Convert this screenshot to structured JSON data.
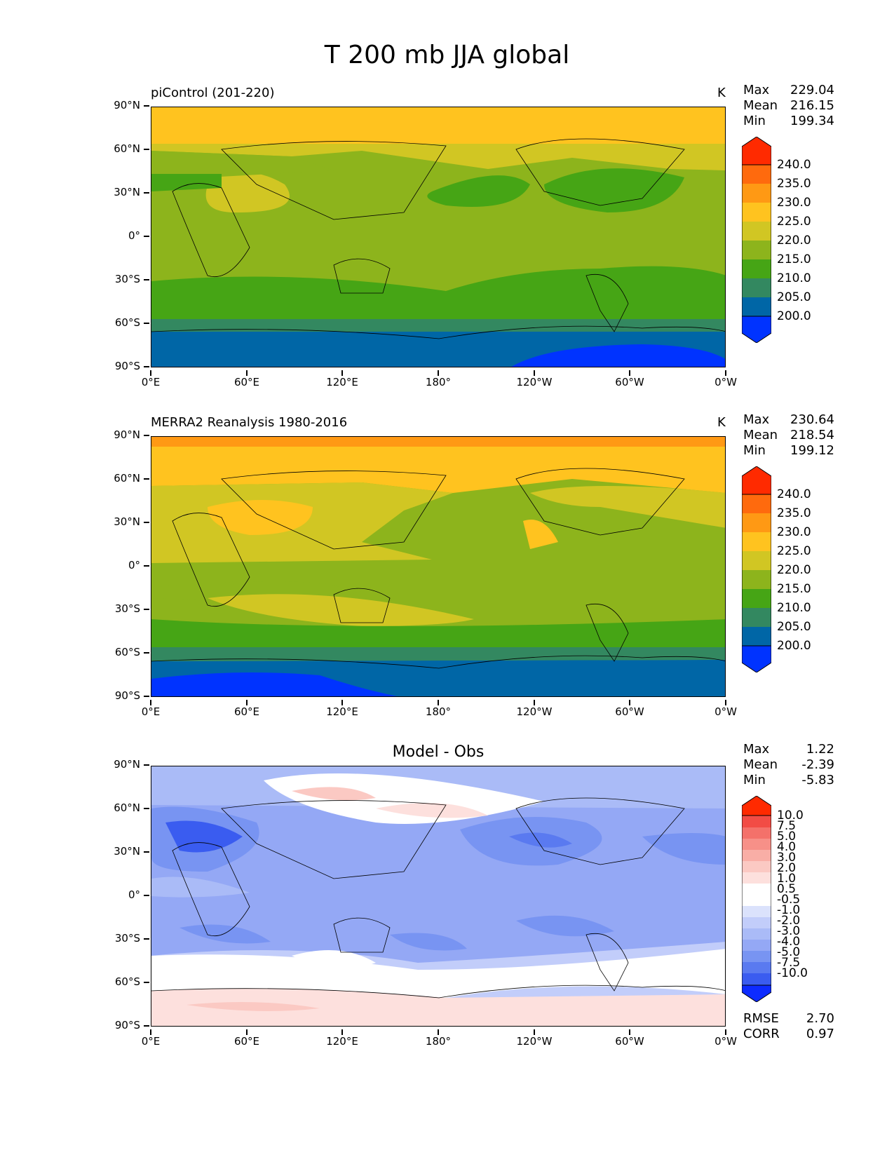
{
  "figure": {
    "title": "T 200 mb JJA global"
  },
  "axes": {
    "yticks": [
      "90°N",
      "60°N",
      "30°N",
      "0°",
      "30°S",
      "60°S",
      "90°S"
    ],
    "xticks": [
      "0°E",
      "60°E",
      "120°E",
      "180°",
      "120°W",
      "60°W",
      "0°W"
    ]
  },
  "colors": {
    "abs_levels": [
      "#0033ff",
      "#0066a6",
      "#338860",
      "#46a515",
      "#8db41c",
      "#d1c623",
      "#ffc31f",
      "#ff9914",
      "#ff6a0d",
      "#ff2a00"
    ],
    "diff_levels": [
      "#0d2bff",
      "#3a5cf0",
      "#5a7af0",
      "#7894f2",
      "#94a8f5",
      "#aabbf7",
      "#c2cdfa",
      "#dbe2fc",
      "#ffffff",
      "#fde0dd",
      "#fbc9c3",
      "#f9aea6",
      "#f79088",
      "#f4716a",
      "#f24c45",
      "#ff2a00"
    ]
  },
  "panels": [
    {
      "title": "piControl (201-220)",
      "units": "K",
      "stats": [
        {
          "label": "Max",
          "value": "229.04"
        },
        {
          "label": "Mean",
          "value": "216.15"
        },
        {
          "label": "Min",
          "value": "199.34"
        }
      ],
      "colorbar": [
        "240.0",
        "235.0",
        "230.0",
        "225.0",
        "220.0",
        "215.0",
        "210.0",
        "205.0",
        "200.0"
      ]
    },
    {
      "title": "MERRA2 Reanalysis 1980-2016",
      "units": "K",
      "stats": [
        {
          "label": "Max",
          "value": "230.64"
        },
        {
          "label": "Mean",
          "value": "218.54"
        },
        {
          "label": "Min",
          "value": "199.12"
        }
      ],
      "colorbar": [
        "240.0",
        "235.0",
        "230.0",
        "225.0",
        "220.0",
        "215.0",
        "210.0",
        "205.0",
        "200.0"
      ]
    },
    {
      "title": "Model - Obs",
      "stats": [
        {
          "label": "Max",
          "value": "1.22"
        },
        {
          "label": "Mean",
          "value": "-2.39"
        },
        {
          "label": "Min",
          "value": "-5.83"
        }
      ],
      "colorbar": [
        "10.0",
        "7.5",
        "5.0",
        "4.0",
        "3.0",
        "2.0",
        "1.0",
        "0.5",
        "-0.5",
        "-1.0",
        "-2.0",
        "-3.0",
        "-4.0",
        "-5.0",
        "-7.5",
        "-10.0"
      ],
      "metrics": [
        {
          "label": "RMSE",
          "value": "2.70"
        },
        {
          "label": "CORR",
          "value": "0.97"
        }
      ]
    }
  ],
  "chart_data": [
    {
      "type": "heatmap",
      "title": "piControl (201-220)",
      "units": "K",
      "xlim": [
        0,
        360
      ],
      "ylim": [
        -90,
        90
      ],
      "zonal_profile_lat": [
        90,
        75,
        60,
        45,
        30,
        15,
        0,
        -15,
        -30,
        -45,
        -60,
        -75,
        -90
      ],
      "zonal_profile_K": [
        227,
        227,
        222,
        218,
        216,
        218,
        218,
        218,
        217,
        214,
        211,
        207,
        204
      ],
      "stats": {
        "max": 229.04,
        "mean": 216.15,
        "min": 199.34
      }
    },
    {
      "type": "heatmap",
      "title": "MERRA2 Reanalysis 1980-2016",
      "units": "K",
      "xlim": [
        0,
        360
      ],
      "ylim": [
        -90,
        90
      ],
      "zonal_profile_lat": [
        90,
        75,
        60,
        45,
        30,
        15,
        0,
        -15,
        -30,
        -45,
        -60,
        -75,
        -90
      ],
      "zonal_profile_K": [
        231,
        228,
        224,
        221,
        220,
        219,
        219,
        219,
        219,
        217,
        212,
        207,
        202
      ],
      "stats": {
        "max": 230.64,
        "mean": 218.54,
        "min": 199.12
      }
    },
    {
      "type": "heatmap",
      "title": "Model - Obs",
      "xlim": [
        0,
        360
      ],
      "ylim": [
        -90,
        90
      ],
      "zonal_profile_lat": [
        90,
        75,
        60,
        45,
        30,
        15,
        0,
        -15,
        -30,
        -45,
        -60,
        -75,
        -90
      ],
      "zonal_profile_diff": [
        -2.0,
        -1.0,
        -0.5,
        -3.0,
        -3.0,
        -2.0,
        -2.0,
        -2.0,
        -3.0,
        -2.0,
        -0.5,
        0.5,
        1.0
      ],
      "stats": {
        "max": 1.22,
        "mean": -2.39,
        "min": -5.83
      },
      "rmse": 2.7,
      "corr": 0.97
    }
  ]
}
